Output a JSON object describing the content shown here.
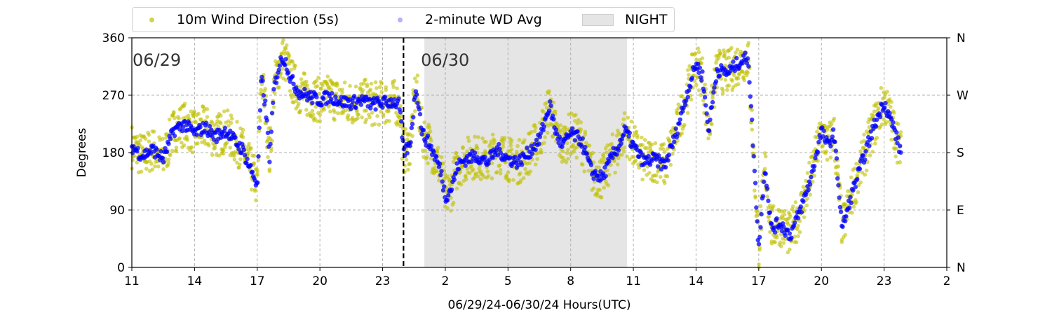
{
  "chart_data": {
    "type": "scatter",
    "title": "",
    "xlabel": "06/29/24-06/30/24  Hours(UTC)",
    "ylabel": "Degrees",
    "xlim": [
      11,
      50
    ],
    "ylim": [
      0,
      360
    ],
    "x_ticks": [
      11,
      14,
      17,
      20,
      23,
      26,
      29,
      32,
      35,
      38,
      41,
      44,
      47,
      50
    ],
    "x_tick_labels": [
      "11",
      "14",
      "17",
      "20",
      "23",
      "2",
      "5",
      "8",
      "11",
      "14",
      "17",
      "20",
      "23",
      "2"
    ],
    "y_ticks": [
      0,
      90,
      180,
      270,
      360
    ],
    "y_tick_labels": [
      "0",
      "90",
      "180",
      "270",
      "360"
    ],
    "y2_tick_labels": [
      "N",
      "E",
      "S",
      "W",
      "N"
    ],
    "grid": true,
    "legend_position": "top",
    "day_labels": [
      {
        "text": "06/29",
        "x": 11
      },
      {
        "text": "06/30",
        "x": 24.8
      }
    ],
    "midnight_line_x": 24,
    "night_span": [
      25,
      34.7
    ],
    "series": [
      {
        "name": "10m Wind Direction (5s)",
        "color": "#bfbf00",
        "x": [
          11.0,
          11.5,
          12.0,
          12.5,
          13.0,
          13.5,
          14.0,
          14.5,
          15.0,
          15.5,
          16.0,
          16.3,
          16.6,
          16.9,
          17.0,
          17.2,
          17.4,
          17.6,
          17.8,
          18.0,
          18.2,
          18.4,
          18.6,
          18.8,
          19.0,
          19.5,
          20.0,
          20.5,
          21.0,
          21.5,
          22.0,
          22.5,
          23.0,
          23.5,
          23.8,
          24.0,
          24.3,
          24.6,
          24.9,
          25.2,
          25.5,
          25.8,
          26.0,
          26.3,
          26.6,
          27.0,
          27.5,
          28.0,
          28.5,
          29.0,
          29.5,
          30.0,
          30.5,
          31.0,
          31.3,
          31.6,
          32.0,
          32.5,
          33.0,
          33.5,
          34.0,
          34.3,
          34.6,
          35.0,
          35.5,
          36.0,
          36.5,
          37.0,
          37.5,
          38.0,
          38.3,
          38.6,
          39.0,
          39.5,
          40.0,
          40.5,
          41.0,
          41.3,
          41.6,
          42.0,
          42.5,
          43.0,
          43.5,
          44.0,
          44.3,
          44.6,
          45.0,
          45.5,
          46.0,
          46.5,
          47.0,
          47.5,
          47.8
        ],
        "y": [
          190,
          175,
          185,
          170,
          215,
          225,
          210,
          220,
          205,
          215,
          195,
          185,
          160,
          140,
          120,
          300,
          250,
          170,
          280,
          310,
          330,
          320,
          295,
          285,
          275,
          268,
          262,
          268,
          260,
          258,
          262,
          256,
          258,
          260,
          255,
          180,
          190,
          285,
          210,
          195,
          175,
          150,
          110,
          125,
          160,
          170,
          175,
          165,
          185,
          170,
          165,
          180,
          200,
          255,
          210,
          190,
          210,
          200,
          150,
          140,
          175,
          190,
          215,
          190,
          165,
          170,
          160,
          205,
          265,
          320,
          300,
          215,
          310,
          305,
          320,
          330,
          30,
          160,
          60,
          70,
          50,
          90,
          140,
          215,
          190,
          210,
          60,
          120,
          170,
          220,
          260,
          215,
          180
        ]
      },
      {
        "name": "2-minute WD Avg",
        "color": "#0000ff",
        "x": [
          11.0,
          11.5,
          12.0,
          12.5,
          13.0,
          13.5,
          14.0,
          14.5,
          15.0,
          15.5,
          16.0,
          16.3,
          16.6,
          16.9,
          17.0,
          17.2,
          17.4,
          17.6,
          17.8,
          18.0,
          18.2,
          18.4,
          18.6,
          18.8,
          19.0,
          19.5,
          20.0,
          20.5,
          21.0,
          21.5,
          22.0,
          22.5,
          23.0,
          23.5,
          23.8,
          24.0,
          24.3,
          24.6,
          24.9,
          25.2,
          25.5,
          25.8,
          26.0,
          26.3,
          26.6,
          27.0,
          27.5,
          28.0,
          28.5,
          29.0,
          29.5,
          30.0,
          30.5,
          31.0,
          31.3,
          31.6,
          32.0,
          32.5,
          33.0,
          33.5,
          34.0,
          34.3,
          34.6,
          35.0,
          35.5,
          36.0,
          36.5,
          37.0,
          37.5,
          38.0,
          38.3,
          38.6,
          39.0,
          39.5,
          40.0,
          40.5,
          41.0,
          41.3,
          41.6,
          42.0,
          42.5,
          43.0,
          43.5,
          44.0,
          44.3,
          44.6,
          45.0,
          45.5,
          46.0,
          46.5,
          47.0,
          47.5,
          47.8
        ],
        "y": [
          190,
          175,
          185,
          170,
          215,
          225,
          210,
          220,
          205,
          215,
          195,
          185,
          160,
          140,
          120,
          300,
          250,
          170,
          280,
          310,
          330,
          320,
          295,
          285,
          275,
          268,
          262,
          268,
          260,
          258,
          262,
          256,
          258,
          260,
          255,
          180,
          190,
          285,
          210,
          195,
          175,
          150,
          110,
          125,
          160,
          170,
          175,
          165,
          185,
          170,
          165,
          180,
          200,
          255,
          210,
          190,
          210,
          200,
          150,
          140,
          175,
          190,
          215,
          190,
          165,
          170,
          160,
          205,
          265,
          320,
          300,
          215,
          310,
          305,
          320,
          330,
          30,
          160,
          60,
          70,
          50,
          90,
          140,
          215,
          190,
          210,
          60,
          120,
          170,
          220,
          260,
          215,
          180
        ]
      }
    ],
    "night_legend_label": "NIGHT"
  }
}
